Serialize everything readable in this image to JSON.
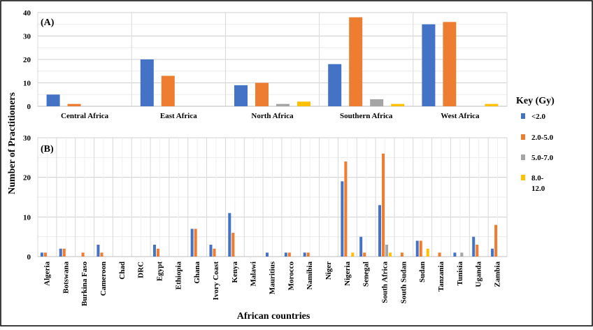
{
  "y_axis_label": "Number of Practitioners",
  "x_axis_label": "African countries",
  "legend": {
    "title": "Key (Gy)",
    "items": [
      {
        "label": "<2.0",
        "color": "#4472C4"
      },
      {
        "label": "2.0-5.0",
        "color": "#ED7D31"
      },
      {
        "label": "5.0-7.0",
        "color": "#A5A5A5"
      },
      {
        "label": "8.0-",
        "label2": "12.0",
        "color": "#FFC000"
      }
    ]
  },
  "chart_data": [
    {
      "type": "bar",
      "panel_label": "(A)",
      "categories": [
        "Central Africa",
        "East Africa",
        "North Africa",
        "Southern Africa",
        "West Africa"
      ],
      "series": [
        {
          "name": "<2.0",
          "values": [
            5,
            20,
            9,
            18,
            35
          ]
        },
        {
          "name": "2.0-5.0",
          "values": [
            1,
            13,
            10,
            38,
            36
          ]
        },
        {
          "name": "5.0-7.0",
          "values": [
            0,
            0,
            1,
            3,
            0
          ]
        },
        {
          "name": "8.0-12.0",
          "values": [
            0,
            0,
            2,
            1,
            1
          ]
        }
      ],
      "ylim": [
        0,
        40
      ],
      "yticks": [
        0,
        10,
        20,
        30,
        40
      ],
      "grid": true
    },
    {
      "type": "bar",
      "panel_label": "(B)",
      "categories": [
        "Algeria",
        "Botswana",
        "Burkina Faso",
        "Cameroon",
        "Chad",
        "DRC",
        "Egypt",
        "Ethiopia",
        "Ghana",
        "Ivory Coast",
        "Kenya",
        "Malawi",
        "Mauritius",
        "Morocco",
        "Namibia",
        "Niger",
        "Nigeria",
        "Senegal",
        "South Africa",
        "South Sudan",
        "Sudan",
        "Tanzania",
        "Tunisia",
        "Uganda",
        "Zambia"
      ],
      "series": [
        {
          "name": "<2.0",
          "values": [
            1,
            2,
            0,
            3,
            0,
            0,
            3,
            0,
            7,
            3,
            11,
            0,
            1,
            1,
            1,
            0,
            19,
            5,
            13,
            0,
            4,
            0,
            1,
            5,
            2
          ]
        },
        {
          "name": "2.0-5.0",
          "values": [
            1,
            2,
            1,
            1,
            0,
            0,
            2,
            0,
            7,
            2,
            6,
            0,
            0,
            1,
            1,
            0,
            24,
            1,
            26,
            1,
            4,
            1,
            0,
            3,
            8
          ]
        },
        {
          "name": "5.0-7.0",
          "values": [
            0,
            0,
            0,
            0,
            0,
            0,
            0,
            0,
            0,
            0,
            0,
            0,
            0,
            0,
            0,
            0,
            0,
            0,
            3,
            0,
            0,
            0,
            1,
            0,
            0
          ]
        },
        {
          "name": "8.0-12.0",
          "values": [
            0,
            0,
            0,
            0,
            0,
            0,
            0,
            0,
            0,
            0,
            0,
            0,
            0,
            0,
            0,
            0,
            1,
            0,
            1,
            0,
            2,
            0,
            0,
            0,
            0
          ]
        }
      ],
      "ylim": [
        0,
        30
      ],
      "yticks": [
        0,
        10,
        20,
        30
      ],
      "grid": true
    }
  ]
}
